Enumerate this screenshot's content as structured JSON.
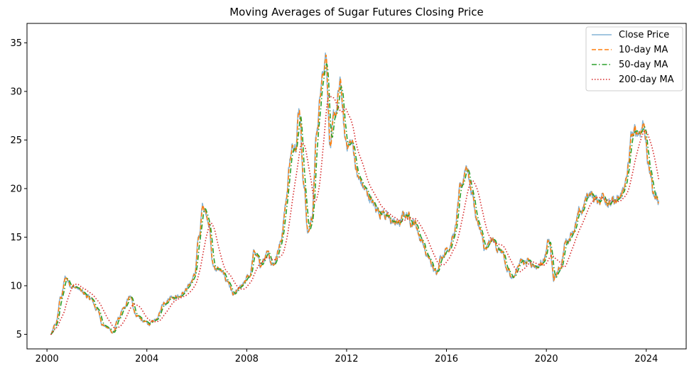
{
  "chart_data": {
    "type": "line",
    "title": "Moving Averages of Sugar Futures Closing Price",
    "xlabel": "",
    "ylabel": "",
    "xlim": [
      1999.2,
      2025.6
    ],
    "ylim": [
      3.5,
      37.0
    ],
    "x_ticks": [
      {
        "value": 2000,
        "label": "2000"
      },
      {
        "value": 2004,
        "label": "2004"
      },
      {
        "value": 2008,
        "label": "2008"
      },
      {
        "value": 2012,
        "label": "2012"
      },
      {
        "value": 2016,
        "label": "2016"
      },
      {
        "value": 2020,
        "label": "2020"
      },
      {
        "value": 2024,
        "label": "2024"
      }
    ],
    "y_ticks": [
      {
        "value": 5,
        "label": "5"
      },
      {
        "value": 10,
        "label": "10"
      },
      {
        "value": 15,
        "label": "15"
      },
      {
        "value": 20,
        "label": "20"
      },
      {
        "value": 25,
        "label": "25"
      },
      {
        "value": 30,
        "label": "30"
      },
      {
        "value": 35,
        "label": "35"
      }
    ],
    "grid": false,
    "legend_position": "top-right",
    "series": [
      {
        "name": "Close Price",
        "color": "#1f77b4",
        "style": "solid",
        "opacity": 0.55
      },
      {
        "name": "10-day MA",
        "color": "#ff7f0e",
        "style": "dashed",
        "opacity": 1
      },
      {
        "name": "50-day MA",
        "color": "#2ca02c",
        "style": "dashdot",
        "opacity": 1
      },
      {
        "name": "200-day MA",
        "color": "#d62728",
        "style": "dotted",
        "opacity": 1
      }
    ],
    "price_keypoints": [
      [
        2000.15,
        5.0
      ],
      [
        2000.35,
        6.0
      ],
      [
        2000.55,
        8.8
      ],
      [
        2000.75,
        10.8
      ],
      [
        2000.95,
        10.2
      ],
      [
        2001.15,
        9.8
      ],
      [
        2001.45,
        9.2
      ],
      [
        2001.75,
        8.6
      ],
      [
        2002.0,
        7.6
      ],
      [
        2002.25,
        6.0
      ],
      [
        2002.45,
        5.6
      ],
      [
        2002.65,
        5.2
      ],
      [
        2002.85,
        6.6
      ],
      [
        2003.1,
        7.6
      ],
      [
        2003.3,
        8.8
      ],
      [
        2003.6,
        7.0
      ],
      [
        2003.9,
        6.2
      ],
      [
        2004.2,
        6.1
      ],
      [
        2004.4,
        6.6
      ],
      [
        2004.7,
        8.4
      ],
      [
        2005.0,
        9.0
      ],
      [
        2005.3,
        8.9
      ],
      [
        2005.6,
        9.5
      ],
      [
        2005.9,
        11.2
      ],
      [
        2006.1,
        15.2
      ],
      [
        2006.25,
        18.4
      ],
      [
        2006.45,
        17.2
      ],
      [
        2006.65,
        12.0
      ],
      [
        2006.9,
        11.6
      ],
      [
        2007.2,
        10.6
      ],
      [
        2007.5,
        9.0
      ],
      [
        2007.8,
        9.8
      ],
      [
        2008.1,
        11.0
      ],
      [
        2008.3,
        13.4
      ],
      [
        2008.55,
        12.2
      ],
      [
        2008.8,
        13.0
      ],
      [
        2009.05,
        12.4
      ],
      [
        2009.35,
        14.4
      ],
      [
        2009.55,
        18.6
      ],
      [
        2009.75,
        23.4
      ],
      [
        2009.95,
        25.2
      ],
      [
        2010.1,
        28.6
      ],
      [
        2010.3,
        20.0
      ],
      [
        2010.45,
        15.4
      ],
      [
        2010.6,
        17.0
      ],
      [
        2010.8,
        25.4
      ],
      [
        2011.0,
        31.2
      ],
      [
        2011.15,
        34.6
      ],
      [
        2011.35,
        24.6
      ],
      [
        2011.55,
        27.6
      ],
      [
        2011.75,
        30.4
      ],
      [
        2011.95,
        24.8
      ],
      [
        2012.2,
        24.6
      ],
      [
        2012.5,
        20.8
      ],
      [
        2012.8,
        19.6
      ],
      [
        2013.1,
        18.2
      ],
      [
        2013.45,
        17.6
      ],
      [
        2013.75,
        16.6
      ],
      [
        2014.1,
        16.4
      ],
      [
        2014.35,
        17.4
      ],
      [
        2014.7,
        16.6
      ],
      [
        2015.0,
        14.8
      ],
      [
        2015.25,
        12.8
      ],
      [
        2015.55,
        11.4
      ],
      [
        2015.8,
        13.2
      ],
      [
        2016.05,
        14.0
      ],
      [
        2016.3,
        15.2
      ],
      [
        2016.55,
        19.6
      ],
      [
        2016.8,
        22.6
      ],
      [
        2017.0,
        19.8
      ],
      [
        2017.25,
        16.4
      ],
      [
        2017.55,
        13.6
      ],
      [
        2017.85,
        14.6
      ],
      [
        2018.15,
        13.6
      ],
      [
        2018.45,
        11.4
      ],
      [
        2018.7,
        11.0
      ],
      [
        2018.95,
        12.6
      ],
      [
        2019.3,
        12.6
      ],
      [
        2019.65,
        12.0
      ],
      [
        2019.95,
        13.0
      ],
      [
        2020.1,
        14.6
      ],
      [
        2020.3,
        10.6
      ],
      [
        2020.5,
        11.6
      ],
      [
        2020.8,
        14.6
      ],
      [
        2021.1,
        16.0
      ],
      [
        2021.4,
        17.6
      ],
      [
        2021.7,
        19.6
      ],
      [
        2022.0,
        18.8
      ],
      [
        2022.3,
        19.4
      ],
      [
        2022.6,
        18.4
      ],
      [
        2022.9,
        18.6
      ],
      [
        2023.15,
        20.4
      ],
      [
        2023.45,
        25.4
      ],
      [
        2023.7,
        26.0
      ],
      [
        2023.9,
        26.8
      ],
      [
        2024.1,
        22.0
      ],
      [
        2024.35,
        19.2
      ],
      [
        2024.5,
        19.0
      ]
    ]
  },
  "legend": {
    "items": [
      "Close Price",
      "10-day MA",
      "50-day MA",
      "200-day MA"
    ]
  }
}
